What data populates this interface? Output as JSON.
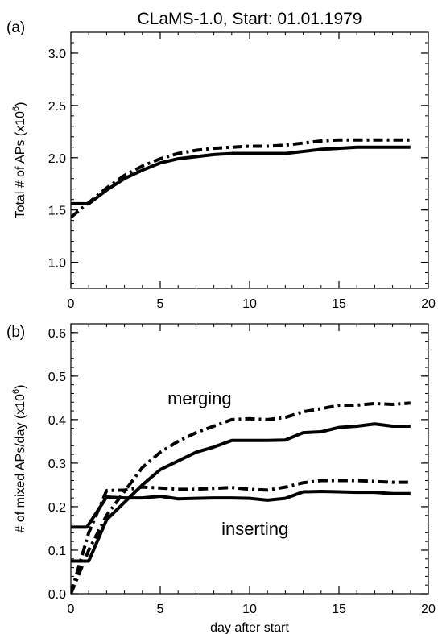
{
  "figure_title": "CLaMS-1.0, Start: 01.01.1979",
  "chart_data": [
    {
      "type": "line",
      "panel_label": "(a)",
      "title": "CLaMS-1.0, Start: 01.01.1979",
      "xlabel": "",
      "ylabel_main": "Total # of APs (x10",
      "ylabel_exp": "6",
      "ylabel_close": ")",
      "xlim": [
        0,
        20
      ],
      "ylim": [
        0.75,
        3.2
      ],
      "xticks": [
        0,
        5,
        10,
        15,
        20
      ],
      "yticks": [
        1.0,
        1.5,
        2.0,
        2.5,
        3.0
      ],
      "ytick_labels": [
        "1.0",
        "1.5",
        "2.0",
        "2.5",
        "3.0"
      ],
      "grid": false,
      "series": [
        {
          "style": "solid",
          "points": [
            [
              0,
              1.56
            ],
            [
              1,
              1.56
            ],
            [
              2,
              1.69
            ],
            [
              3,
              1.8
            ],
            [
              4,
              1.88
            ],
            [
              5,
              1.95
            ],
            [
              6,
              1.99
            ],
            [
              7,
              2.01
            ],
            [
              8,
              2.03
            ],
            [
              9,
              2.04
            ],
            [
              10,
              2.04
            ],
            [
              11,
              2.04
            ],
            [
              12,
              2.04
            ],
            [
              13,
              2.06
            ],
            [
              14,
              2.08
            ],
            [
              15,
              2.09
            ],
            [
              16,
              2.1
            ],
            [
              17,
              2.1
            ],
            [
              18,
              2.1
            ],
            [
              19,
              2.1
            ]
          ]
        },
        {
          "style": "dashdot",
          "points": [
            [
              0,
              1.43
            ],
            [
              1,
              1.57
            ],
            [
              2,
              1.71
            ],
            [
              3,
              1.83
            ],
            [
              4,
              1.92
            ],
            [
              5,
              1.99
            ],
            [
              6,
              2.04
            ],
            [
              7,
              2.07
            ],
            [
              8,
              2.09
            ],
            [
              9,
              2.1
            ],
            [
              10,
              2.11
            ],
            [
              11,
              2.11
            ],
            [
              12,
              2.12
            ],
            [
              13,
              2.14
            ],
            [
              14,
              2.16
            ],
            [
              15,
              2.17
            ],
            [
              16,
              2.17
            ],
            [
              17,
              2.17
            ],
            [
              18,
              2.17
            ],
            [
              19,
              2.17
            ]
          ]
        }
      ]
    },
    {
      "type": "line",
      "panel_label": "(b)",
      "title": "",
      "xlabel": "day after start",
      "ylabel_main": "# of mixed APs/day (x10",
      "ylabel_exp": "6",
      "ylabel_close": ")",
      "xlim": [
        0,
        20
      ],
      "ylim": [
        0.0,
        0.62
      ],
      "xticks": [
        0,
        5,
        10,
        15,
        20
      ],
      "yticks": [
        0.0,
        0.1,
        0.2,
        0.3,
        0.4,
        0.5,
        0.6
      ],
      "ytick_labels": [
        "0.0",
        "0.1",
        "0.2",
        "0.3",
        "0.4",
        "0.5",
        "0.6"
      ],
      "grid": false,
      "series": [
        {
          "style": "solid",
          "points": [
            [
              0,
              0.153
            ],
            [
              0.9,
              0.153
            ],
            [
              2,
              0.222
            ],
            [
              3,
              0.22
            ],
            [
              4,
              0.22
            ],
            [
              5,
              0.224
            ],
            [
              6,
              0.218
            ],
            [
              7,
              0.219
            ],
            [
              8,
              0.22
            ],
            [
              9,
              0.22
            ],
            [
              10,
              0.219
            ],
            [
              11,
              0.215
            ],
            [
              12,
              0.219
            ],
            [
              13,
              0.234
            ],
            [
              14,
              0.235
            ],
            [
              15,
              0.234
            ],
            [
              16,
              0.233
            ],
            [
              17,
              0.233
            ],
            [
              18,
              0.23
            ],
            [
              19,
              0.23
            ]
          ]
        },
        {
          "style": "solid",
          "points": [
            [
              0,
              0.075
            ],
            [
              1,
              0.075
            ],
            [
              2,
              0.17
            ],
            [
              3,
              0.21
            ],
            [
              4,
              0.25
            ],
            [
              5,
              0.285
            ],
            [
              6,
              0.305
            ],
            [
              7,
              0.325
            ],
            [
              8,
              0.337
            ],
            [
              9,
              0.352
            ],
            [
              10,
              0.352
            ],
            [
              11,
              0.352
            ],
            [
              12,
              0.353
            ],
            [
              13,
              0.37
            ],
            [
              14,
              0.372
            ],
            [
              15,
              0.382
            ],
            [
              16,
              0.385
            ],
            [
              17,
              0.39
            ],
            [
              18,
              0.385
            ],
            [
              19,
              0.385
            ]
          ]
        },
        {
          "style": "dashdot",
          "points": [
            [
              0,
              0.0
            ],
            [
              1,
              0.14
            ],
            [
              2,
              0.237
            ],
            [
              3,
              0.238
            ],
            [
              4,
              0.245
            ],
            [
              5,
              0.243
            ],
            [
              6,
              0.24
            ],
            [
              7,
              0.24
            ],
            [
              8,
              0.242
            ],
            [
              9,
              0.244
            ],
            [
              10,
              0.24
            ],
            [
              11,
              0.238
            ],
            [
              12,
              0.245
            ],
            [
              13,
              0.255
            ],
            [
              14,
              0.26
            ],
            [
              15,
              0.26
            ],
            [
              16,
              0.26
            ],
            [
              17,
              0.258
            ],
            [
              18,
              0.256
            ],
            [
              19,
              0.256
            ]
          ]
        },
        {
          "style": "dashdot",
          "points": [
            [
              0,
              0.0
            ],
            [
              1,
              0.1
            ],
            [
              2,
              0.18
            ],
            [
              3,
              0.235
            ],
            [
              4,
              0.29
            ],
            [
              5,
              0.325
            ],
            [
              6,
              0.35
            ],
            [
              7,
              0.37
            ],
            [
              8,
              0.385
            ],
            [
              9,
              0.4
            ],
            [
              10,
              0.402
            ],
            [
              11,
              0.4
            ],
            [
              12,
              0.405
            ],
            [
              13,
              0.418
            ],
            [
              14,
              0.425
            ],
            [
              15,
              0.433
            ],
            [
              16,
              0.433
            ],
            [
              17,
              0.437
            ],
            [
              18,
              0.435
            ],
            [
              19,
              0.438
            ]
          ]
        }
      ],
      "annotations": [
        {
          "text": "merging",
          "x": 7.2,
          "y": 0.45
        },
        {
          "text": "inserting",
          "x": 10.3,
          "y": 0.15
        }
      ]
    }
  ]
}
